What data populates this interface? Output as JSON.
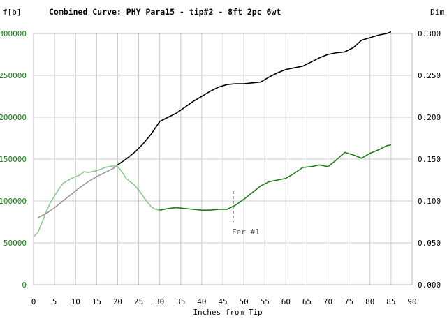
{
  "chart_data": {
    "type": "line",
    "title": "Combined Curve: PHY Para15 - tip#2 - 8ft 2pc 6wt",
    "xlabel": "Inches from Tip",
    "y_left_unit": "f[b]",
    "y_right_unit": "Dim",
    "xlim": [
      0,
      90
    ],
    "ylim_left": [
      0,
      300000
    ],
    "ylim_right": [
      0.0,
      0.3
    ],
    "x_ticks": [
      "0",
      "5",
      "10",
      "15",
      "20",
      "25",
      "30",
      "35",
      "40",
      "45",
      "50",
      "55",
      "60",
      "65",
      "70",
      "75",
      "80",
      "85",
      "90"
    ],
    "y_left_ticks": [
      "0",
      "50000",
      "100000",
      "150000",
      "200000",
      "250000",
      "300000"
    ],
    "y_right_ticks": [
      "0.000",
      "0.050",
      "0.100",
      "0.150",
      "0.200",
      "0.250",
      "0.300"
    ],
    "grid": true,
    "colors": {
      "stiffness": "#1a7f1a",
      "stiffness_light": "#8cc98c",
      "dimension": "#000000",
      "dimension_light": "#999999",
      "grid": "#cccccc",
      "left_axis_text": "#1a7f1a",
      "right_axis_text": "#000000",
      "ferrule": "#555555"
    },
    "series": [
      {
        "axis": "left",
        "x": [
          0,
          1,
          2,
          3,
          4,
          5,
          6,
          7,
          8,
          9,
          10,
          11,
          12,
          13,
          14,
          15,
          16,
          17,
          18,
          19,
          20,
          21,
          22,
          23,
          24,
          25,
          26,
          27,
          28,
          29,
          30,
          32,
          34,
          36,
          38,
          40,
          42,
          44,
          46,
          48,
          50,
          52,
          54,
          56,
          58,
          60,
          62,
          64,
          66,
          68,
          70,
          72,
          74,
          76,
          78,
          80,
          82,
          84,
          85
        ],
        "values": [
          57000,
          62000,
          74000,
          87000,
          98000,
          106000,
          114000,
          121000,
          124000,
          127000,
          129000,
          131000,
          135000,
          134000,
          135000,
          136000,
          138000,
          140000,
          141000,
          142000,
          141000,
          135000,
          127000,
          123000,
          119000,
          113000,
          106000,
          99000,
          93000,
          90000,
          89000,
          91000,
          92000,
          91000,
          90000,
          89000,
          89000,
          90000,
          90000,
          95000,
          102000,
          110000,
          118000,
          123000,
          125000,
          127000,
          133000,
          140000,
          141000,
          143000,
          141000,
          149000,
          158000,
          155000,
          151000,
          157000,
          161000,
          166000,
          167000
        ]
      },
      {
        "axis": "right",
        "x": [
          1,
          3,
          5,
          7,
          9,
          11,
          13,
          15,
          17,
          19,
          20,
          22,
          24,
          26,
          28,
          30,
          32,
          34,
          36,
          38,
          40,
          42,
          44,
          46,
          48,
          50,
          52,
          54,
          56,
          58,
          60,
          62,
          64,
          66,
          68,
          70,
          72,
          74,
          76,
          78,
          80,
          82,
          84,
          85
        ],
        "values": [
          0.08,
          0.085,
          0.092,
          0.1,
          0.108,
          0.116,
          0.123,
          0.129,
          0.134,
          0.139,
          0.143,
          0.15,
          0.158,
          0.168,
          0.18,
          0.195,
          0.2,
          0.205,
          0.212,
          0.219,
          0.225,
          0.231,
          0.236,
          0.239,
          0.24,
          0.24,
          0.241,
          0.242,
          0.248,
          0.253,
          0.257,
          0.259,
          0.261,
          0.266,
          0.271,
          0.275,
          0.277,
          0.278,
          0.283,
          0.292,
          0.295,
          0.298,
          0.3,
          0.302
        ]
      }
    ],
    "annotations": [
      {
        "text": "Fer #1",
        "x": 47.5
      }
    ]
  }
}
